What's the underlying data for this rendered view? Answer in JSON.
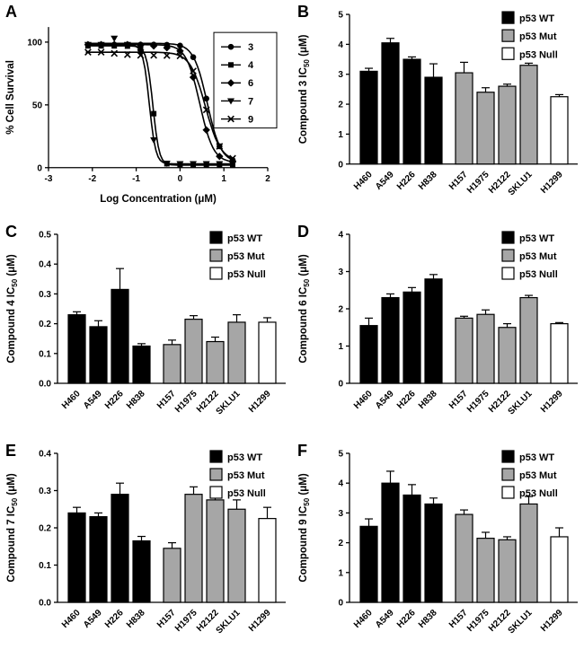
{
  "panels": [
    {
      "label": "A"
    },
    {
      "label": "B"
    },
    {
      "label": "C"
    },
    {
      "label": "D"
    },
    {
      "label": "E"
    },
    {
      "label": "F"
    }
  ],
  "bar_groups": [
    {
      "label": "p53 WT",
      "fill": "#000000"
    },
    {
      "label": "p53 Mut",
      "fill": "#a6a6a6"
    },
    {
      "label": "p53 Null",
      "fill": "#ffffff"
    }
  ],
  "chart_data": [
    {
      "id": "a",
      "type": "line",
      "title": "Dose-response curves",
      "xlabel": "Log Concentration (μM)",
      "ylabel": "% Cell Survival",
      "xlim": [
        -3,
        2
      ],
      "ylim": [
        0,
        112
      ],
      "xtick_vals": [
        -3,
        -2,
        -1,
        0,
        1,
        2
      ],
      "xtick_labels": [
        "-3",
        "-2",
        "-1",
        "0",
        "1",
        "2"
      ],
      "ytick_vals": [
        0,
        50,
        100
      ],
      "ytick_labels": [
        "0",
        "50",
        "100"
      ],
      "legend_position": "right-inside-box",
      "x": [
        -2.1,
        -1.8,
        -1.5,
        -1.2,
        -0.9,
        -0.6,
        -0.3,
        0,
        0.3,
        0.6,
        0.9,
        1.2
      ],
      "series": [
        {
          "name": "3",
          "marker": "circle",
          "fit": {
            "top": 99,
            "bottom": 4,
            "logIC50": 0.62,
            "hill": 2.8
          },
          "y": [
            98,
            98,
            98,
            98,
            98,
            98,
            97.8,
            97.2,
            88,
            55,
            17,
            6
          ]
        },
        {
          "name": "4",
          "marker": "square",
          "fit": {
            "top": 97,
            "bottom": 2,
            "logIC50": -0.62,
            "hill": 6
          },
          "y": [
            97,
            97,
            97,
            96.8,
            95,
            43,
            3.1,
            2,
            2,
            2,
            2,
            2
          ]
        },
        {
          "name": "6",
          "marker": "diamond",
          "fit": {
            "top": 98,
            "bottom": 4,
            "logIC50": 0.45,
            "hill": 2.8
          },
          "y": [
            98,
            98,
            98,
            98,
            97.5,
            97,
            95.5,
            93,
            72,
            30,
            9,
            4.7
          ]
        },
        {
          "name": "7",
          "marker": "triangle-down",
          "fit": {
            "top": 98,
            "bottom": 3,
            "logIC50": -0.7,
            "hill": 6
          },
          "y": [
            98,
            98,
            103,
            98,
            92,
            22,
            3.4,
            3,
            3,
            3,
            3,
            3
          ]
        },
        {
          "name": "9",
          "marker": "x",
          "fit": {
            "top": 92,
            "bottom": 5,
            "logIC50": 0.58,
            "hill": 2.5
          },
          "y": [
            92,
            92,
            91,
            90,
            89.5,
            89.5,
            89.3,
            89,
            77,
            46,
            17,
            7.4
          ]
        }
      ]
    },
    {
      "id": "b",
      "type": "bar",
      "ylabel": {
        "pre": "Compound 3 IC",
        "sub": "50",
        "post": " (μM)"
      },
      "ylim": [
        0,
        5
      ],
      "ytick_vals": [
        0,
        1,
        2,
        3,
        4,
        5
      ],
      "ytick_labels": [
        "0",
        "1",
        "2",
        "3",
        "4",
        "5"
      ],
      "categories": [
        "H460",
        "A549",
        "H226",
        "H838",
        "H157",
        "H1975",
        "H2122",
        "SKLU1",
        "H1299"
      ],
      "values": [
        3.1,
        4.05,
        3.5,
        2.9,
        3.05,
        2.4,
        2.6,
        3.3,
        2.25
      ],
      "errors": [
        0.1,
        0.15,
        0.08,
        0.45,
        0.35,
        0.15,
        0.07,
        0.07,
        0.07
      ],
      "group_of": [
        0,
        0,
        0,
        0,
        1,
        1,
        1,
        1,
        2
      ]
    },
    {
      "id": "c",
      "type": "bar",
      "ylabel": {
        "pre": "Compound 4 IC",
        "sub": "50",
        "post": " (μM)"
      },
      "ylim": [
        0,
        0.5
      ],
      "ytick_vals": [
        0,
        0.1,
        0.2,
        0.3,
        0.4,
        0.5
      ],
      "ytick_labels": [
        "0.0",
        "0.1",
        "0.2",
        "0.3",
        "0.4",
        "0.5"
      ],
      "categories": [
        "H460",
        "A549",
        "H226",
        "H838",
        "H157",
        "H1975",
        "H2122",
        "SKLU1",
        "H1299"
      ],
      "values": [
        0.23,
        0.19,
        0.315,
        0.125,
        0.13,
        0.215,
        0.14,
        0.205,
        0.205
      ],
      "errors": [
        0.01,
        0.02,
        0.07,
        0.008,
        0.015,
        0.012,
        0.015,
        0.025,
        0.015
      ],
      "group_of": [
        0,
        0,
        0,
        0,
        1,
        1,
        1,
        1,
        2
      ]
    },
    {
      "id": "d",
      "type": "bar",
      "ylabel": {
        "pre": "Compound 6 IC",
        "sub": "50",
        "post": " (μM)"
      },
      "ylim": [
        0,
        4
      ],
      "ytick_vals": [
        0,
        1,
        2,
        3,
        4
      ],
      "ytick_labels": [
        "0",
        "1",
        "2",
        "3",
        "4"
      ],
      "categories": [
        "H460",
        "A549",
        "H226",
        "H838",
        "H157",
        "H1975",
        "H2122",
        "SKLU1",
        "H1299"
      ],
      "values": [
        1.55,
        2.3,
        2.45,
        2.8,
        1.75,
        1.85,
        1.5,
        2.3,
        1.6
      ],
      "errors": [
        0.2,
        0.1,
        0.12,
        0.12,
        0.05,
        0.12,
        0.1,
        0.06,
        0.03
      ],
      "group_of": [
        0,
        0,
        0,
        0,
        1,
        1,
        1,
        1,
        2
      ]
    },
    {
      "id": "e",
      "type": "bar",
      "ylabel": {
        "pre": "Compound 7 IC",
        "sub": "50",
        "post": " (μM)"
      },
      "ylim": [
        0,
        0.4
      ],
      "ytick_vals": [
        0,
        0.1,
        0.2,
        0.3,
        0.4
      ],
      "ytick_labels": [
        "0.0",
        "0.1",
        "0.2",
        "0.3",
        "0.4"
      ],
      "categories": [
        "H460",
        "A549",
        "H226",
        "H838",
        "H157",
        "H1975",
        "H2122",
        "SKLU1",
        "H1299"
      ],
      "values": [
        0.24,
        0.23,
        0.29,
        0.165,
        0.145,
        0.29,
        0.275,
        0.25,
        0.225
      ],
      "errors": [
        0.015,
        0.01,
        0.03,
        0.012,
        0.015,
        0.02,
        0.015,
        0.025,
        0.03
      ],
      "group_of": [
        0,
        0,
        0,
        0,
        1,
        1,
        1,
        1,
        2
      ]
    },
    {
      "id": "f",
      "type": "bar",
      "ylabel": {
        "pre": "Compound 9 IC",
        "sub": "50",
        "post": " (μM)"
      },
      "ylim": [
        0,
        5
      ],
      "ytick_vals": [
        0,
        1,
        2,
        3,
        4,
        5
      ],
      "ytick_labels": [
        "0",
        "1",
        "2",
        "3",
        "4",
        "5"
      ],
      "categories": [
        "H460",
        "A549",
        "H226",
        "H838",
        "H157",
        "H1975",
        "H2122",
        "SKLU1",
        "H1299"
      ],
      "values": [
        2.55,
        4.0,
        3.6,
        3.3,
        2.95,
        2.15,
        2.1,
        3.3,
        2.2
      ],
      "errors": [
        0.25,
        0.4,
        0.35,
        0.2,
        0.15,
        0.2,
        0.1,
        0.25,
        0.3
      ],
      "group_of": [
        0,
        0,
        0,
        0,
        1,
        1,
        1,
        1,
        2
      ]
    }
  ]
}
